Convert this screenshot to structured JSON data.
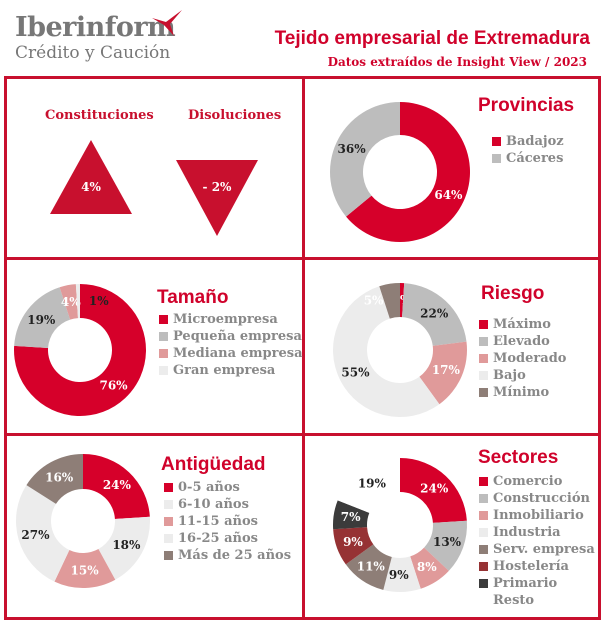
{
  "header": {
    "logo_name": "Iberinform",
    "logo_sub": "Crédito y Caución",
    "title": "Tejido empresarial de Extremadura",
    "subtitle": "Datos extraídos de Insight View / 2023"
  },
  "indicators": {
    "constituciones": {
      "label": "Constituciones",
      "value": "4%"
    },
    "disoluciones": {
      "label": "Disoluciones",
      "value": "- 2%"
    }
  },
  "colors": {
    "red": "#d6002a",
    "gray": "#bdbdbd",
    "pink": "#e09a9a",
    "light": "#ececec",
    "taupe": "#8e7e77",
    "darkred": "#963234",
    "dark": "#3b3b3b",
    "white": "#ffffff"
  },
  "chart_data": [
    {
      "id": "provincias",
      "type": "pie",
      "title": "Provincias",
      "categories": [
        "Badajoz",
        "Cáceres"
      ],
      "values": [
        64,
        36
      ],
      "colors": [
        "red",
        "gray"
      ]
    },
    {
      "id": "tamano",
      "type": "pie",
      "title": "Tamaño",
      "categories": [
        "Microempresa",
        "Pequeña empresa",
        "Mediana empresa",
        "Gran empresa"
      ],
      "values": [
        76,
        19,
        4,
        1
      ],
      "colors": [
        "red",
        "gray",
        "pink",
        "light"
      ]
    },
    {
      "id": "riesgo",
      "type": "pie",
      "title": "Riesgo",
      "categories": [
        "Máximo",
        "Elevado",
        "Moderado",
        "Bajo",
        "Mínimo"
      ],
      "values": [
        1,
        22,
        17,
        55,
        5
      ],
      "colors": [
        "red",
        "gray",
        "pink",
        "light",
        "taupe"
      ]
    },
    {
      "id": "antiguedad",
      "type": "pie",
      "title": "Antigüedad",
      "categories": [
        "0-5 años",
        "6-10 años",
        "11-15 años",
        "16-25 años",
        "Más de 25 años"
      ],
      "values": [
        24,
        18,
        15,
        27,
        16
      ],
      "colors": [
        "red",
        "light",
        "pink",
        "light",
        "taupe"
      ]
    },
    {
      "id": "sectores",
      "type": "pie",
      "title": "Sectores",
      "categories": [
        "Comercio",
        "Construcción",
        "Inmobiliario",
        "Industria",
        "Serv. empresa",
        "Hostelería",
        "Primario",
        "Resto"
      ],
      "values": [
        24,
        13,
        8,
        9,
        11,
        9,
        7,
        19
      ],
      "colors": [
        "red",
        "gray",
        "pink",
        "light",
        "taupe",
        "darkred",
        "dark",
        "white"
      ]
    }
  ]
}
